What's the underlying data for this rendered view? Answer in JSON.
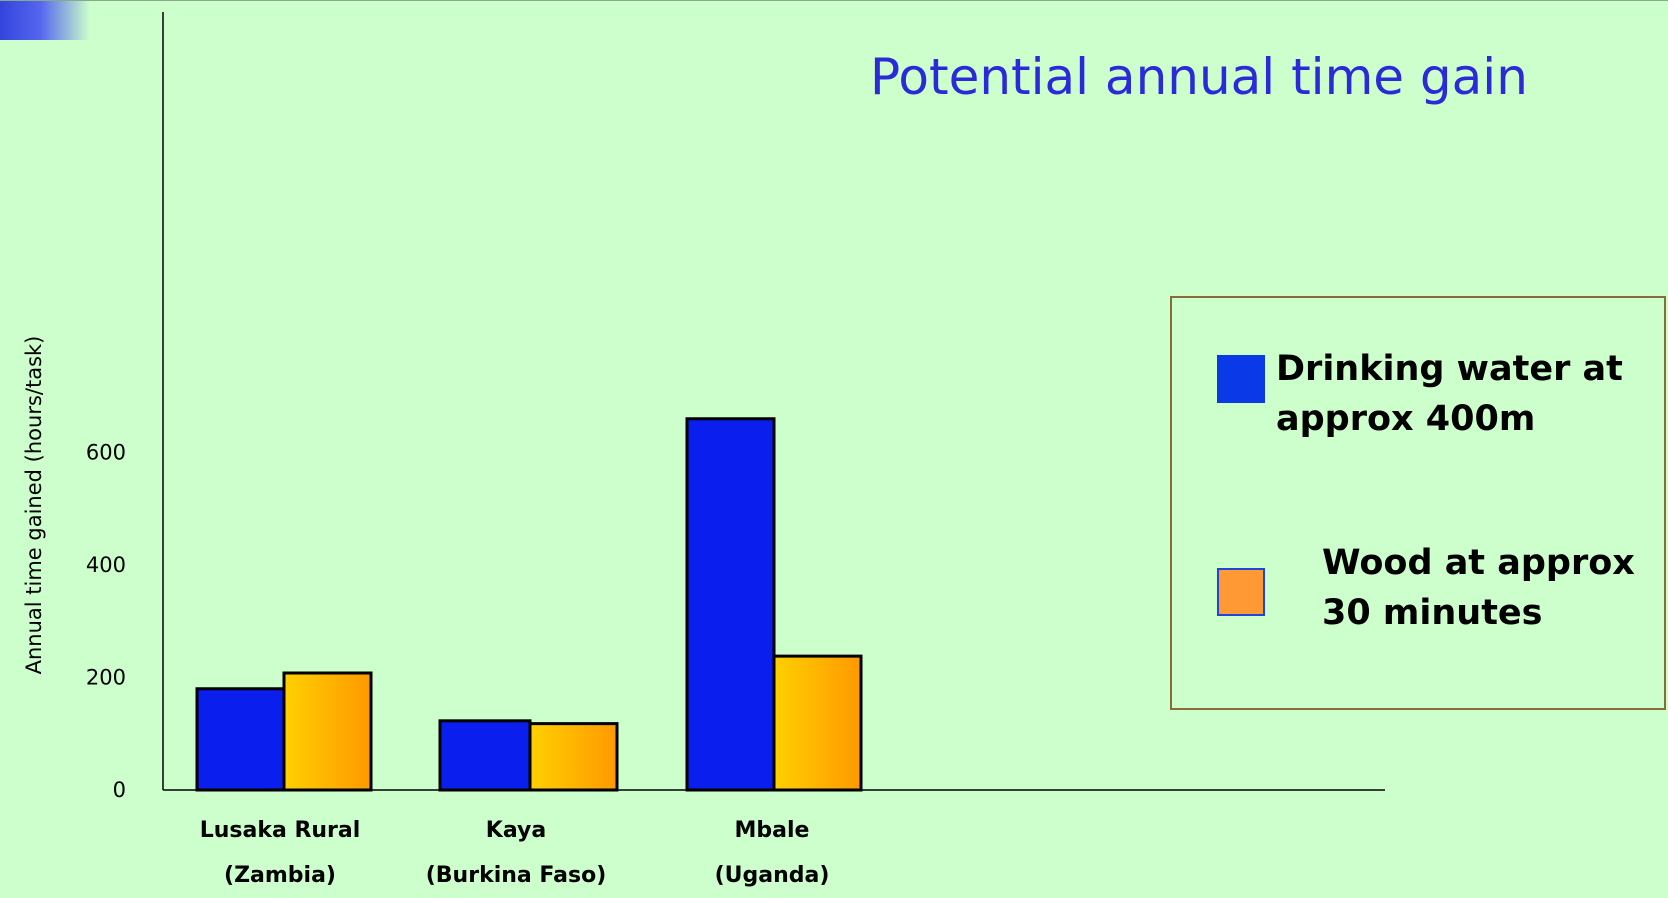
{
  "chart_data": {
    "type": "bar",
    "title": "Potential annual time gain",
    "ylabel": "Annual time gained (hours/task)",
    "xlabel": "",
    "ylim": [
      0,
      600
    ],
    "yticks": [
      0,
      200,
      400,
      600
    ],
    "categories": [
      "Lusaka Rural\n(Zambia)",
      "Kaya\n(Burkina Faso)",
      "Mbale\n(Uganda)"
    ],
    "series": [
      {
        "name": "Drinking water at approx 400m",
        "values": [
          180,
          123,
          660
        ],
        "color": "#0a1eee"
      },
      {
        "name": "Wood at approx 30 minutes",
        "values": [
          208,
          118,
          238
        ],
        "color": "#ffa500"
      }
    ],
    "legend_position": "right",
    "grid": false
  },
  "colors": {
    "background": "#ccffcc",
    "title": "#2a2ad8",
    "water": "#0a1eee",
    "wood_start": "#ffd000",
    "wood_end": "#ff9900",
    "legend_border": "#8b6a3a"
  }
}
